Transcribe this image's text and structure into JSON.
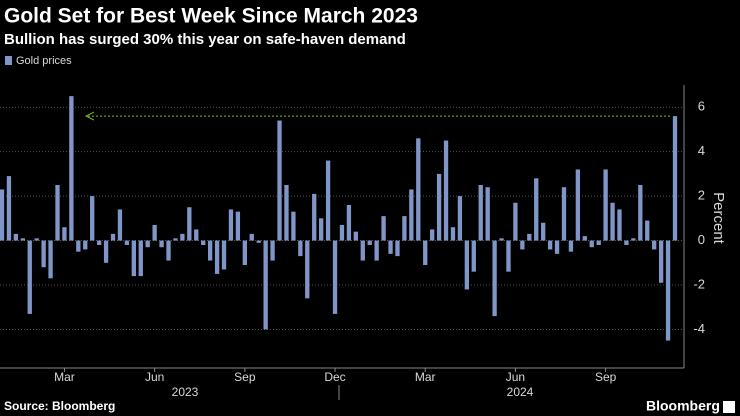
{
  "chart_data": {
    "type": "bar",
    "title": "Gold Set for Best Week Since March 2023",
    "subtitle": "Bullion has surged 30% this year on safe-haven demand",
    "y_label": "Percent",
    "source": "Source: Bloomberg",
    "brand": "Bloomberg",
    "x_group_labels": [
      "2023",
      "2024"
    ],
    "categories": [
      null,
      null,
      null,
      null,
      null,
      null,
      null,
      null,
      null,
      "Mar",
      null,
      null,
      null,
      null,
      null,
      null,
      null,
      null,
      null,
      null,
      null,
      null,
      "Jun",
      null,
      null,
      null,
      null,
      null,
      null,
      null,
      null,
      null,
      null,
      null,
      null,
      "Sep",
      null,
      null,
      null,
      null,
      null,
      null,
      null,
      null,
      null,
      null,
      null,
      null,
      "Dec",
      null,
      null,
      null,
      null,
      null,
      null,
      null,
      null,
      null,
      null,
      null,
      null,
      "Mar",
      null,
      null,
      null,
      null,
      null,
      null,
      null,
      null,
      null,
      null,
      null,
      null,
      "Jun",
      null,
      null,
      null,
      null,
      null,
      null,
      null,
      null,
      null,
      null,
      null,
      null,
      "Sep",
      null,
      null,
      null,
      null,
      null,
      null,
      null,
      null,
      null,
      null
    ],
    "series": [
      {
        "name": "Gold prices",
        "color": "#8196c8",
        "values": [
          2.3,
          2.9,
          0.3,
          0.1,
          -3.3,
          0.1,
          -1.2,
          -1.7,
          2.5,
          0.6,
          6.5,
          -0.5,
          -0.4,
          2.0,
          -0.2,
          -1.0,
          0.3,
          1.4,
          -0.2,
          -1.6,
          -1.6,
          -0.3,
          0.7,
          -0.3,
          -0.9,
          0.1,
          0.3,
          1.5,
          0.5,
          -0.2,
          -0.9,
          -1.5,
          -1.3,
          1.4,
          1.3,
          -1.1,
          0.3,
          -0.1,
          -4.0,
          -0.9,
          5.4,
          2.5,
          1.3,
          -0.7,
          -2.6,
          2.1,
          1.0,
          3.6,
          -3.3,
          0.7,
          1.6,
          0.4,
          -0.9,
          -0.2,
          -0.9,
          1.1,
          -0.6,
          -0.7,
          1.1,
          2.3,
          4.6,
          -1.1,
          0.5,
          3.0,
          4.5,
          0.6,
          2.0,
          -2.2,
          -1.4,
          2.5,
          2.4,
          -3.4,
          0.1,
          -1.4,
          1.7,
          -0.4,
          0.3,
          2.8,
          0.8,
          -0.4,
          -0.6,
          2.4,
          -0.5,
          3.2,
          0.2,
          -0.3,
          -0.2,
          3.2,
          1.7,
          1.4,
          -0.2,
          0.1,
          2.5,
          0.9,
          -0.4,
          -1.9,
          -4.5,
          5.6
        ]
      }
    ],
    "ylim": [
      -5.6,
      7
    ],
    "yticks": [
      -4,
      -2,
      0,
      2,
      4,
      6
    ],
    "grid": true,
    "legend": "top-left"
  }
}
